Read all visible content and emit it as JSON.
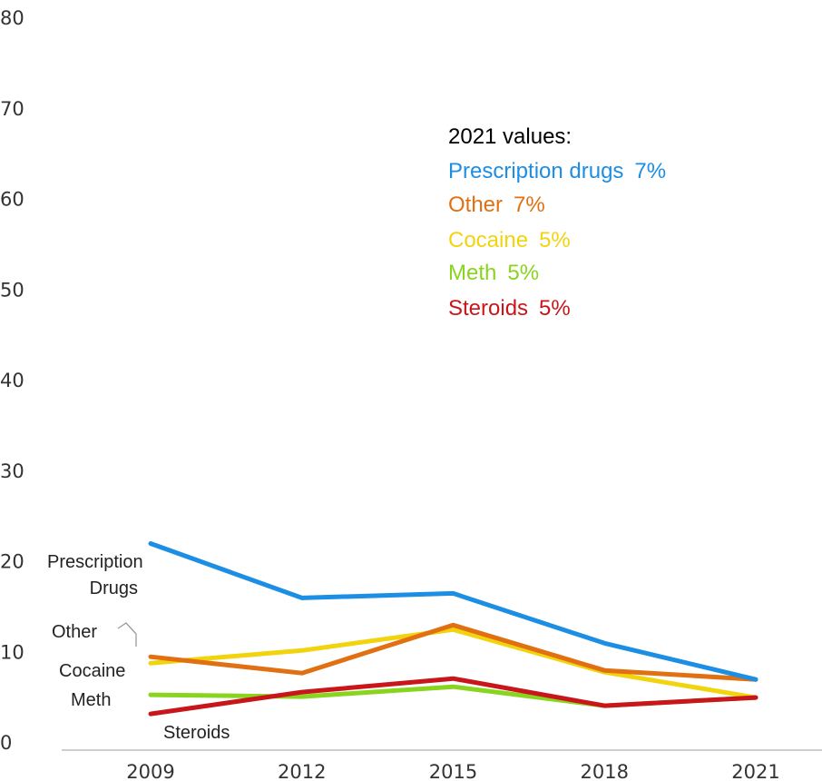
{
  "chart_data": {
    "type": "line",
    "x": [
      "2009",
      "2012",
      "2015",
      "2018",
      "2021"
    ],
    "ylim": [
      0,
      80
    ],
    "yticks": [
      "0",
      "10",
      "20",
      "30",
      "40",
      "50",
      "60",
      "70",
      "80"
    ],
    "grid": false,
    "series": [
      {
        "name": "Prescription drugs",
        "color": "#1c8ee3",
        "values": [
          22,
          16,
          16.5,
          11,
          7
        ]
      },
      {
        "name": "Other",
        "color": "#e07012",
        "values": [
          9.5,
          7.7,
          13,
          8,
          7
        ]
      },
      {
        "name": "Cocaine",
        "color": "#f2d40e",
        "values": [
          8.8,
          10.2,
          12.5,
          7.8,
          5
        ]
      },
      {
        "name": "Meth",
        "color": "#88d41e",
        "values": [
          5.3,
          5.1,
          6.2,
          4.1,
          5
        ]
      },
      {
        "name": "Steroids",
        "color": "#c8161b",
        "values": [
          3.2,
          5.6,
          7.1,
          4.1,
          5
        ]
      }
    ],
    "inline_labels": {
      "prescription_line1": "Prescription",
      "prescription_line2": "Drugs",
      "other": "Other",
      "cocaine": "Cocaine",
      "meth": "Meth",
      "steroids": "Steroids"
    },
    "legend": {
      "title": "2021 values:",
      "placement": "top-right",
      "items": [
        {
          "label": "Prescription drugs",
          "value": "7%",
          "color": "#1c8ee3"
        },
        {
          "label": "Other",
          "value": "7%",
          "color": "#e07012"
        },
        {
          "label": "Cocaine",
          "value": "5%",
          "color": "#f2d40e"
        },
        {
          "label": "Meth",
          "value": "5%",
          "color": "#88d41e"
        },
        {
          "label": "Steroids",
          "value": "5%",
          "color": "#c8161b"
        }
      ]
    }
  }
}
